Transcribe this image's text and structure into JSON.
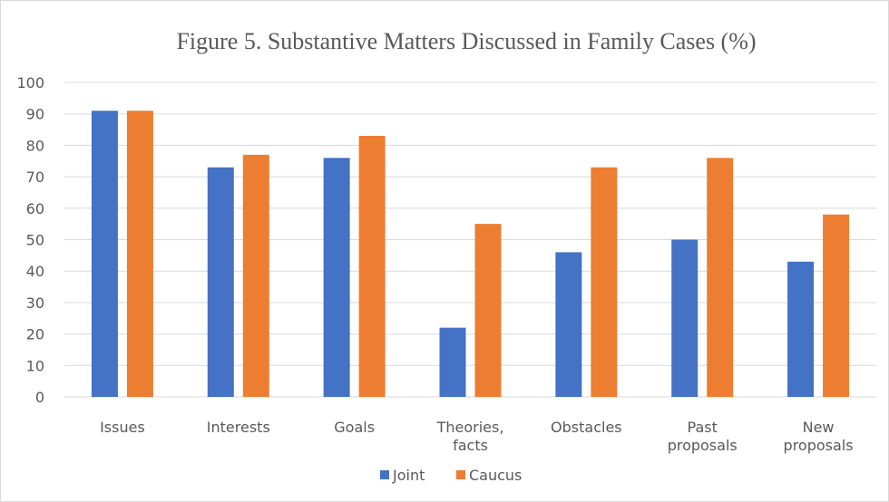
{
  "chart_data": {
    "type": "bar",
    "title": "Figure 5. Substantive Matters Discussed in Family Cases (%)",
    "xlabel": "",
    "ylabel": "",
    "ylim": [
      0,
      100
    ],
    "yticks": [
      0,
      10,
      20,
      30,
      40,
      50,
      60,
      70,
      80,
      90,
      100
    ],
    "grid": true,
    "legend_position": "bottom",
    "categories": [
      [
        "Issues"
      ],
      [
        "Interests"
      ],
      [
        "Goals"
      ],
      [
        "Theories,",
        "facts"
      ],
      [
        "Obstacles"
      ],
      [
        "Past",
        "proposals"
      ],
      [
        "New",
        "proposals"
      ]
    ],
    "series": [
      {
        "name": "Joint",
        "color": "#4472C4",
        "values": [
          91,
          73,
          76,
          22,
          46,
          50,
          43
        ]
      },
      {
        "name": "Caucus",
        "color": "#ED7D31",
        "values": [
          91,
          77,
          83,
          55,
          73,
          76,
          58
        ]
      }
    ]
  }
}
